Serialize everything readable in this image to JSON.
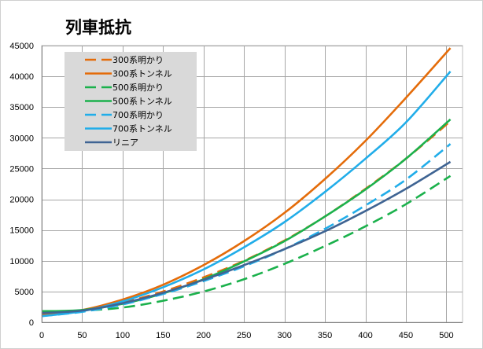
{
  "chart_data": {
    "type": "line",
    "title": "列車抵抗",
    "xlabel": "",
    "ylabel": "",
    "xlim": [
      0,
      520
    ],
    "ylim": [
      0,
      45000
    ],
    "x_ticks": [
      0,
      50,
      100,
      150,
      200,
      250,
      300,
      350,
      400,
      450,
      500
    ],
    "y_ticks": [
      0,
      5000,
      10000,
      15000,
      20000,
      25000,
      30000,
      35000,
      40000,
      45000
    ],
    "grid": true,
    "legend_position": "top-left",
    "x": [
      0,
      50,
      100,
      150,
      200,
      250,
      300,
      350,
      400,
      450,
      505
    ],
    "series": [
      {
        "name": "300系明かり",
        "color": "#E46C0A",
        "dash": "dashed",
        "values": [
          1300,
          1900,
          3200,
          5000,
          7300,
          10000,
          13300,
          17200,
          21700,
          26600,
          32700
        ]
      },
      {
        "name": "300系トンネル",
        "color": "#E46C0A",
        "dash": "solid",
        "values": [
          1300,
          2000,
          3700,
          6100,
          9300,
          13200,
          17800,
          23300,
          29500,
          36500,
          44600
        ]
      },
      {
        "name": "500系明かり",
        "color": "#1BB14C",
        "dash": "dashed",
        "values": [
          1800,
          1900,
          2400,
          3500,
          5000,
          7000,
          9500,
          12400,
          15600,
          19200,
          23800
        ]
      },
      {
        "name": "500系トンネル",
        "color": "#1BB14C",
        "dash": "solid",
        "values": [
          1800,
          2000,
          3000,
          4700,
          7000,
          9900,
          13200,
          17200,
          21600,
          26600,
          33000
        ]
      },
      {
        "name": "700系明かり",
        "color": "#21ADE9",
        "dash": "dashed",
        "values": [
          1000,
          1700,
          2900,
          4600,
          6700,
          9100,
          11900,
          15200,
          19000,
          23200,
          29000
        ]
      },
      {
        "name": "700系トンネル",
        "color": "#21ADE9",
        "dash": "solid",
        "values": [
          1000,
          1800,
          3400,
          5700,
          8600,
          12200,
          16300,
          21200,
          26600,
          32500,
          40800
        ]
      },
      {
        "name": "リニア",
        "color": "#3F6493",
        "dash": "solid",
        "values": [
          1500,
          1900,
          3100,
          4800,
          6900,
          9300,
          11900,
          14800,
          18100,
          21700,
          26100
        ]
      }
    ]
  }
}
